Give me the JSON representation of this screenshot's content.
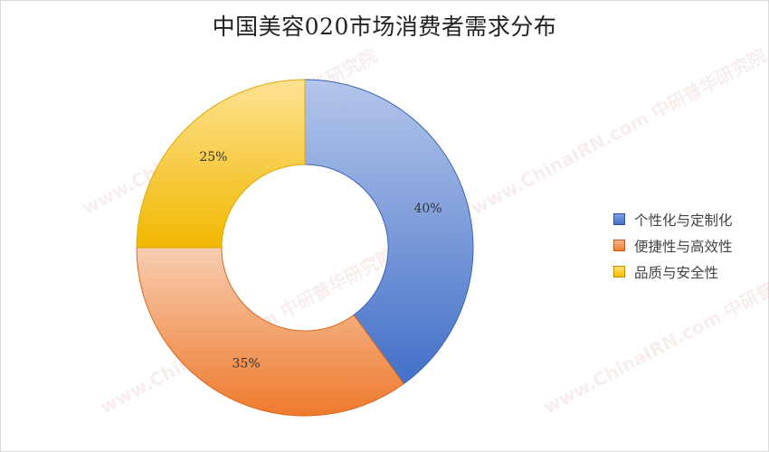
{
  "watermark": "www.ChinaIRN.com 中研普华研究院 CIRN",
  "chart_data": {
    "type": "pie",
    "variant": "donut",
    "title": "中国美容020市场消费者需求分布",
    "categories": [
      "个性化与定制化",
      "便捷性与高效性",
      "品质与安全性"
    ],
    "values": [
      40,
      35,
      25
    ],
    "data_labels": [
      "40%",
      "35%",
      "25%"
    ],
    "colors": [
      "#4472c4",
      "#ed7d31",
      "#ffc000"
    ],
    "legend_position": "right"
  }
}
